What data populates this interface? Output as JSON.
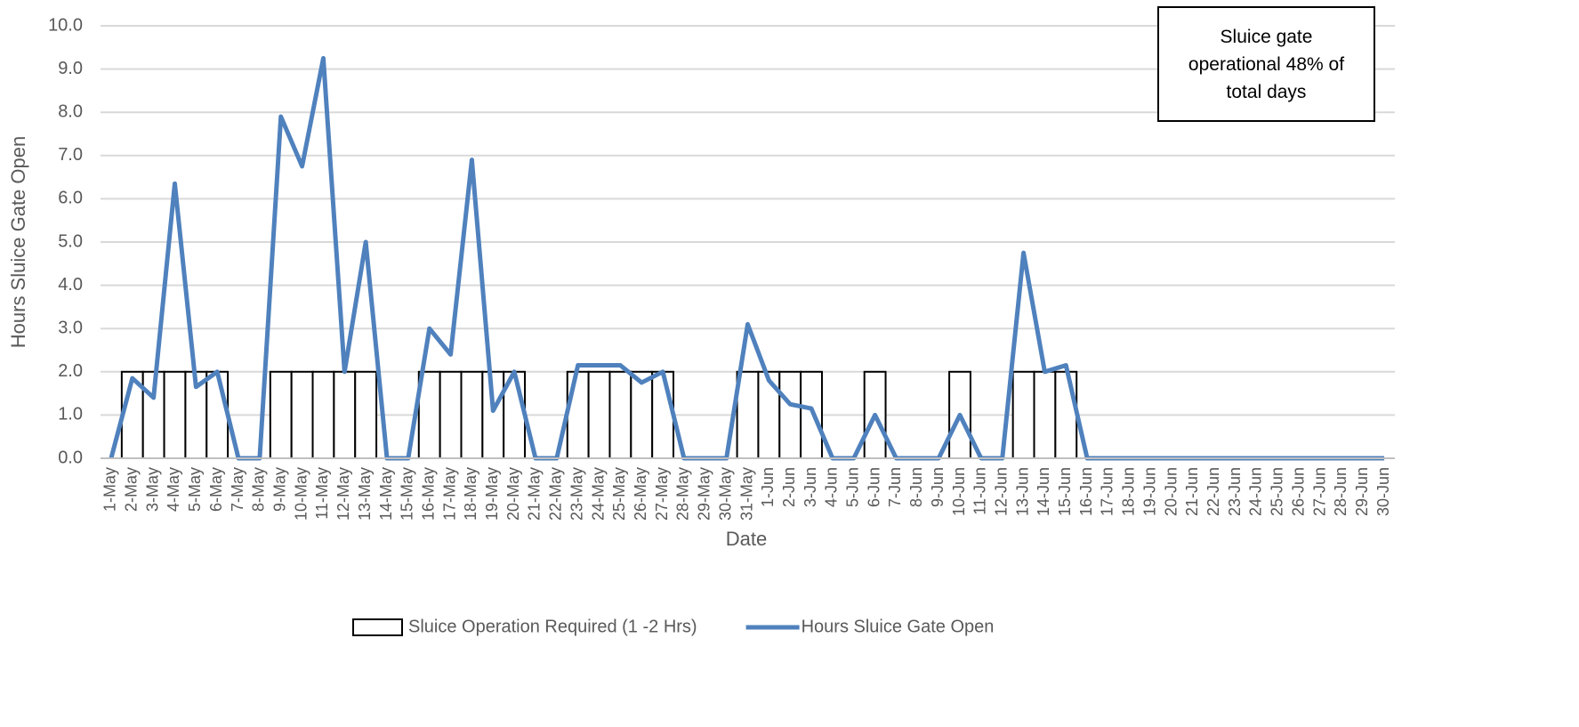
{
  "chart_data": {
    "type": "bar-line",
    "x_label": "Date",
    "y_label": "Hours Sluice Gate Open",
    "annotation": "Sluice gate operational 48% of total days",
    "categories": [
      "1-May",
      "2-May",
      "3-May",
      "4-May",
      "5-May",
      "6-May",
      "7-May",
      "8-May",
      "9-May",
      "10-May",
      "11-May",
      "12-May",
      "13-May",
      "14-May",
      "15-May",
      "16-May",
      "17-May",
      "18-May",
      "19-May",
      "20-May",
      "21-May",
      "22-May",
      "23-May",
      "24-May",
      "25-May",
      "26-May",
      "27-May",
      "28-May",
      "29-May",
      "30-May",
      "31-May",
      "1-Jun",
      "2-Jun",
      "3-Jun",
      "4-Jun",
      "5-Jun",
      "6-Jun",
      "7-Jun",
      "8-Jun",
      "9-Jun",
      "10-Jun",
      "11-Jun",
      "12-Jun",
      "13-Jun",
      "14-Jun",
      "15-Jun",
      "16-Jun",
      "17-Jun",
      "18-Jun",
      "19-Jun",
      "20-Jun",
      "21-Jun",
      "22-Jun",
      "23-Jun",
      "24-Jun",
      "25-Jun",
      "26-Jun",
      "27-Jun",
      "28-Jun",
      "29-Jun",
      "30-Jun"
    ],
    "series": [
      {
        "name": "Sluice Operation Required (1 -2 Hrs)",
        "type": "bar",
        "color": "#ffffff",
        "values": [
          0,
          2,
          2,
          2,
          2,
          2,
          0,
          0,
          2,
          2,
          2,
          2,
          2,
          0,
          0,
          2,
          2,
          2,
          2,
          2,
          0,
          0,
          2,
          2,
          2,
          2,
          2,
          0,
          0,
          0,
          2,
          2,
          2,
          2,
          0,
          0,
          2,
          0,
          0,
          0,
          2,
          0,
          0,
          2,
          2,
          2,
          0,
          0,
          0,
          0,
          0,
          0,
          0,
          0,
          0,
          0,
          0,
          0,
          0,
          0,
          0
        ]
      },
      {
        "name": "Hours Sluice Gate Open",
        "type": "line",
        "color": "#4f81bd",
        "values": [
          0,
          1.85,
          1.4,
          6.35,
          1.65,
          2.0,
          0,
          0,
          7.9,
          6.75,
          9.25,
          2.0,
          5.0,
          0,
          0,
          3.0,
          2.4,
          6.9,
          1.1,
          2.0,
          0,
          0,
          2.15,
          2.15,
          2.15,
          1.75,
          2.0,
          0,
          0,
          0,
          3.1,
          1.8,
          1.25,
          1.15,
          0,
          0,
          1.0,
          0,
          0,
          0,
          1.0,
          0,
          0,
          4.75,
          2.0,
          2.15,
          0,
          0,
          0,
          0,
          0,
          0,
          0,
          0,
          0,
          0,
          0,
          0,
          0,
          0,
          0
        ]
      }
    ],
    "ylim": [
      0,
      10
    ],
    "yticks": [
      {
        "value": 0,
        "label": "0.0"
      },
      {
        "value": 1,
        "label": "1.0"
      },
      {
        "value": 2,
        "label": "2.0"
      },
      {
        "value": 3,
        "label": "3.0"
      },
      {
        "value": 4,
        "label": "4.0"
      },
      {
        "value": 5,
        "label": "5.0"
      },
      {
        "value": 6,
        "label": "6.0"
      },
      {
        "value": 7,
        "label": "7.0"
      },
      {
        "value": 8,
        "label": "8.0"
      },
      {
        "value": 9,
        "label": "9.0"
      },
      {
        "value": 10,
        "label": "10.0"
      }
    ],
    "grid": true,
    "legend": "bottom"
  }
}
